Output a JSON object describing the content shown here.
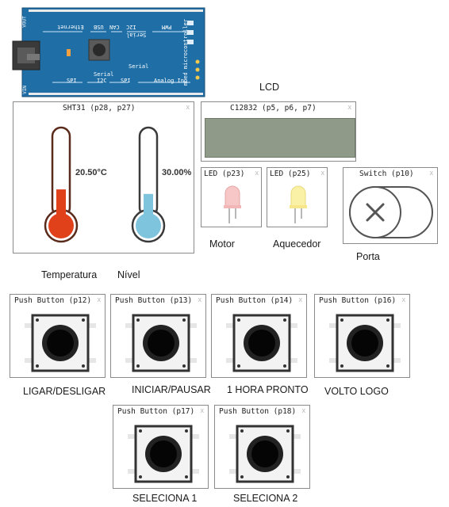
{
  "board": {
    "labels": {
      "ethernet": "Ethernet",
      "usb": "USB",
      "can": "CAN",
      "i2c": "I2C",
      "serial": "Serial",
      "pwm": "PWM",
      "spi": "SPI",
      "analog_in": "Analog In",
      "mbed": "mbed microcontroller",
      "vout": "VOUT",
      "vin": "VIN"
    }
  },
  "lcd": {
    "caption": "LCD",
    "title": "C12832 (p5, p6, p7)",
    "close": "x"
  },
  "sensor": {
    "title": "SHT31 (p28, p27)",
    "close": "x",
    "temperature": {
      "value_text": "20.50°C",
      "caption": "Temperatura",
      "level": 0.35,
      "color": "#e0401a"
    },
    "humidity": {
      "value_text": "30.00%",
      "caption": "Nível",
      "level": 0.3,
      "color": "#7fc4dd"
    }
  },
  "leds": [
    {
      "title": "LED (p23)",
      "close": "x",
      "caption": "Motor",
      "color": "#f7c6c6"
    },
    {
      "title": "LED (p25)",
      "close": "x",
      "caption": "Aquecedor",
      "color": "#fbf1a6"
    }
  ],
  "switch": {
    "title": "Switch (p10)",
    "close": "x",
    "caption": "Porta",
    "icon": "x-icon"
  },
  "buttons": [
    {
      "title": "Push Button (p12)",
      "close": "x",
      "caption": "LIGAR/DESLIGAR"
    },
    {
      "title": "Push Button (p13)",
      "close": "x",
      "caption": "INICIAR/PAUSAR"
    },
    {
      "title": "Push Button (p14)",
      "close": "x",
      "caption": "1 HORA PRONTO"
    },
    {
      "title": "Push Button (p16)",
      "close": "x",
      "caption": "VOLTO LOGO"
    },
    {
      "title": "Push Button (p17)",
      "close": "x",
      "caption": "SELECIONA 1"
    },
    {
      "title": "Push Button (p18)",
      "close": "x",
      "caption": "SELECIONA 2"
    }
  ],
  "colors": {
    "board": "#1f6fa6",
    "temperature_fill": "#e0401a",
    "humidity_fill": "#7fc4dd",
    "lcd_screen": "#8f9a89"
  }
}
